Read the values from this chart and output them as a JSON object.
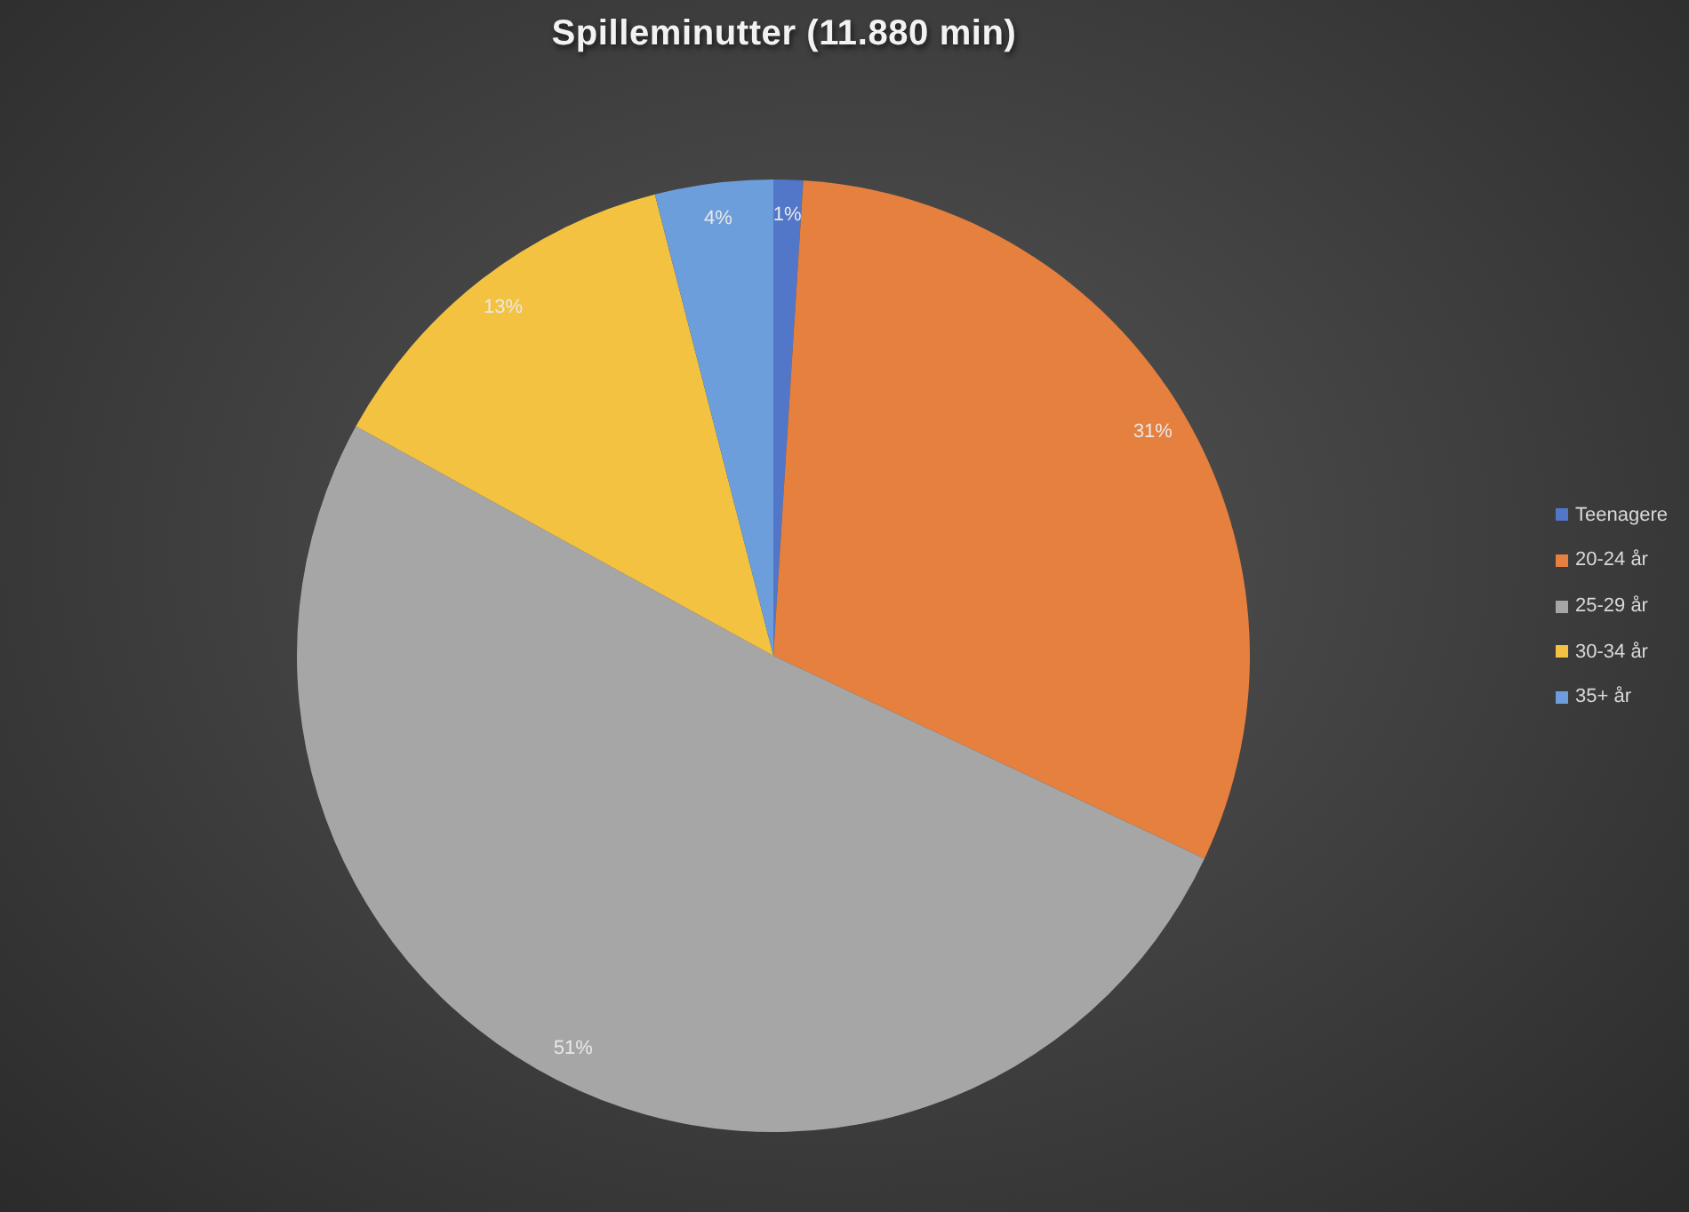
{
  "chart_data": {
    "type": "pie",
    "title": "Spilleminutter (11.880 min)",
    "categories": [
      "Teenagere",
      "20-24 år",
      "25-29 år",
      "30-34 år",
      "35+ år"
    ],
    "values": [
      1,
      31,
      51,
      13,
      4
    ],
    "colors": [
      "#5276c8",
      "#e6803f",
      "#a6a6a6",
      "#f3c241",
      "#6b9edb"
    ],
    "value_labels": [
      "1%",
      "31%",
      "51%",
      "13%",
      "4%"
    ],
    "legend": "right"
  }
}
